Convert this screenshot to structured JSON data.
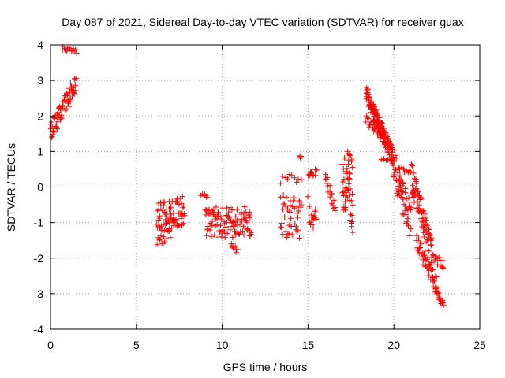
{
  "chart_data": {
    "type": "scatter",
    "title": "Day 087 of 2021, Sidereal Day-to-day VTEC variation (SDTVAR) for receiver guax",
    "xlabel": "GPS time / hours",
    "ylabel": "SDTVAR / TECUs",
    "xlim": [
      0,
      25
    ],
    "ylim": [
      -4,
      4
    ],
    "xticks": [
      0,
      5,
      10,
      15,
      20,
      25
    ],
    "yticks": [
      -4,
      -3,
      -2,
      -1,
      0,
      1,
      2,
      3,
      4
    ],
    "grid": true,
    "marker": "+",
    "marker_color": "#ff0000",
    "series": [
      {
        "name": "SDTVAR",
        "segments": [
          {
            "x0": 0.0,
            "x1": 1.5,
            "y0": 1.5,
            "y1": 3.0,
            "spread": 0.6,
            "n": 70
          },
          {
            "x0": 0.7,
            "x1": 1.5,
            "y0": 3.9,
            "y1": 3.8,
            "spread": 0.15,
            "n": 14
          },
          {
            "x0": 6.2,
            "x1": 7.8,
            "y0": -0.8,
            "y1": -0.7,
            "spread": 0.9,
            "n": 80
          },
          {
            "x0": 6.2,
            "x1": 7.0,
            "y0": -1.6,
            "y1": -1.3,
            "spread": 0.3,
            "n": 14
          },
          {
            "x0": 8.8,
            "x1": 9.1,
            "y0": -0.25,
            "y1": -0.25,
            "spread": 0.15,
            "n": 5
          },
          {
            "x0": 9.0,
            "x1": 11.7,
            "y0": -1.0,
            "y1": -1.0,
            "spread": 0.9,
            "n": 110
          },
          {
            "x0": 10.5,
            "x1": 10.9,
            "y0": -1.6,
            "y1": -1.8,
            "spread": 0.2,
            "n": 8
          },
          {
            "x0": 13.4,
            "x1": 14.6,
            "y0": -0.8,
            "y1": -0.9,
            "spread": 1.2,
            "n": 45
          },
          {
            "x0": 13.4,
            "x1": 14.6,
            "y0": 0.2,
            "y1": 0.3,
            "spread": 0.3,
            "n": 10
          },
          {
            "x0": 14.5,
            "x1": 14.6,
            "y0": 0.95,
            "y1": 0.8,
            "spread": 0.2,
            "n": 4
          },
          {
            "x0": 15.0,
            "x1": 15.5,
            "y0": 0.4,
            "y1": 0.4,
            "spread": 0.2,
            "n": 14
          },
          {
            "x0": 15.0,
            "x1": 15.5,
            "y0": -0.6,
            "y1": -1.0,
            "spread": 0.8,
            "n": 18
          },
          {
            "x0": 16.0,
            "x1": 16.6,
            "y0": 0.4,
            "y1": -0.7,
            "spread": 0.4,
            "n": 18
          },
          {
            "x0": 17.0,
            "x1": 17.6,
            "y0": 0.2,
            "y1": -0.5,
            "spread": 1.6,
            "n": 50
          },
          {
            "x0": 17.3,
            "x1": 17.6,
            "y0": 1.0,
            "y1": 0.6,
            "spread": 0.3,
            "n": 8
          },
          {
            "x0": 18.4,
            "x1": 20.0,
            "y0": 2.6,
            "y1": 0.8,
            "spread": 0.5,
            "n": 150
          },
          {
            "x0": 18.4,
            "x1": 19.5,
            "y0": 1.9,
            "y1": 1.3,
            "spread": 0.3,
            "n": 30
          },
          {
            "x0": 19.3,
            "x1": 20.0,
            "y0": 0.75,
            "y1": 0.75,
            "spread": 0.1,
            "n": 10
          },
          {
            "x0": 20.0,
            "x1": 21.0,
            "y0": 0.5,
            "y1": -1.0,
            "spread": 1.0,
            "n": 60
          },
          {
            "x0": 20.3,
            "x1": 21.0,
            "y0": 0.5,
            "y1": 0.4,
            "spread": 0.15,
            "n": 12
          },
          {
            "x0": 21.0,
            "x1": 22.2,
            "y0": 0.3,
            "y1": -1.8,
            "spread": 0.8,
            "n": 80
          },
          {
            "x0": 21.3,
            "x1": 22.5,
            "y0": -1.5,
            "y1": -2.8,
            "spread": 0.5,
            "n": 50
          },
          {
            "x0": 22.2,
            "x1": 22.9,
            "y0": -2.0,
            "y1": -2.2,
            "spread": 0.3,
            "n": 16
          },
          {
            "x0": 22.4,
            "x1": 22.9,
            "y0": -2.9,
            "y1": -3.3,
            "spread": 0.2,
            "n": 18
          }
        ]
      }
    ]
  }
}
